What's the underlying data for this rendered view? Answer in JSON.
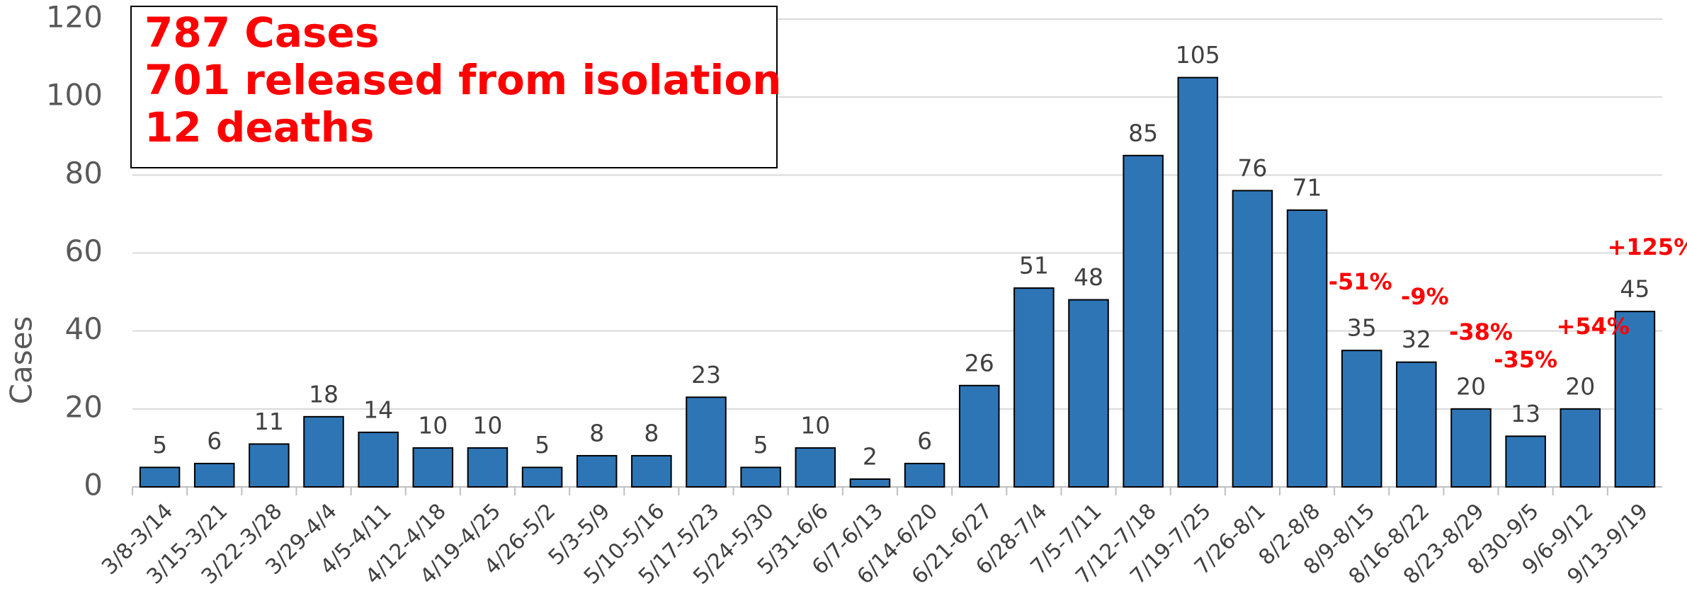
{
  "chart_data": {
    "type": "bar",
    "y_label": "Cases",
    "summary": [
      "787 Cases",
      "701 released from isolation",
      "12 deaths"
    ],
    "categories": [
      "3/8-3/14",
      "3/15-3/21",
      "3/22-3/28",
      "3/29-4/4",
      "4/5-4/11",
      "4/12-4/18",
      "4/19-4/25",
      "4/26-5/2",
      "5/3-5/9",
      "5/10-5/16",
      "5/17-5/23",
      "5/24-5/30",
      "5/31-6/6",
      "6/7-6/13",
      "6/14-6/20",
      "6/21-6/27",
      "6/28-7/4",
      "7/5-7/11",
      "7/12-7/18",
      "7/19-7/25",
      "7/26-8/1",
      "8/2-8/8",
      "8/9-8/15",
      "8/16-8/22",
      "8/23-8/29",
      "8/30-9/5",
      "9/6-9/12",
      "9/13-9/19"
    ],
    "values": [
      5,
      6,
      11,
      18,
      14,
      10,
      10,
      5,
      8,
      8,
      23,
      5,
      10,
      2,
      6,
      26,
      51,
      48,
      85,
      105,
      76,
      71,
      35,
      32,
      20,
      13,
      20,
      45
    ],
    "annotations": [
      "-51%",
      "-9%",
      "-38%",
      "-35%",
      "+54%",
      "+125%"
    ],
    "color": "#2e75b6",
    "ylim": [
      0,
      120
    ],
    "yticks": [
      0,
      20,
      40,
      60,
      80,
      100,
      120
    ],
    "grid": true
  }
}
